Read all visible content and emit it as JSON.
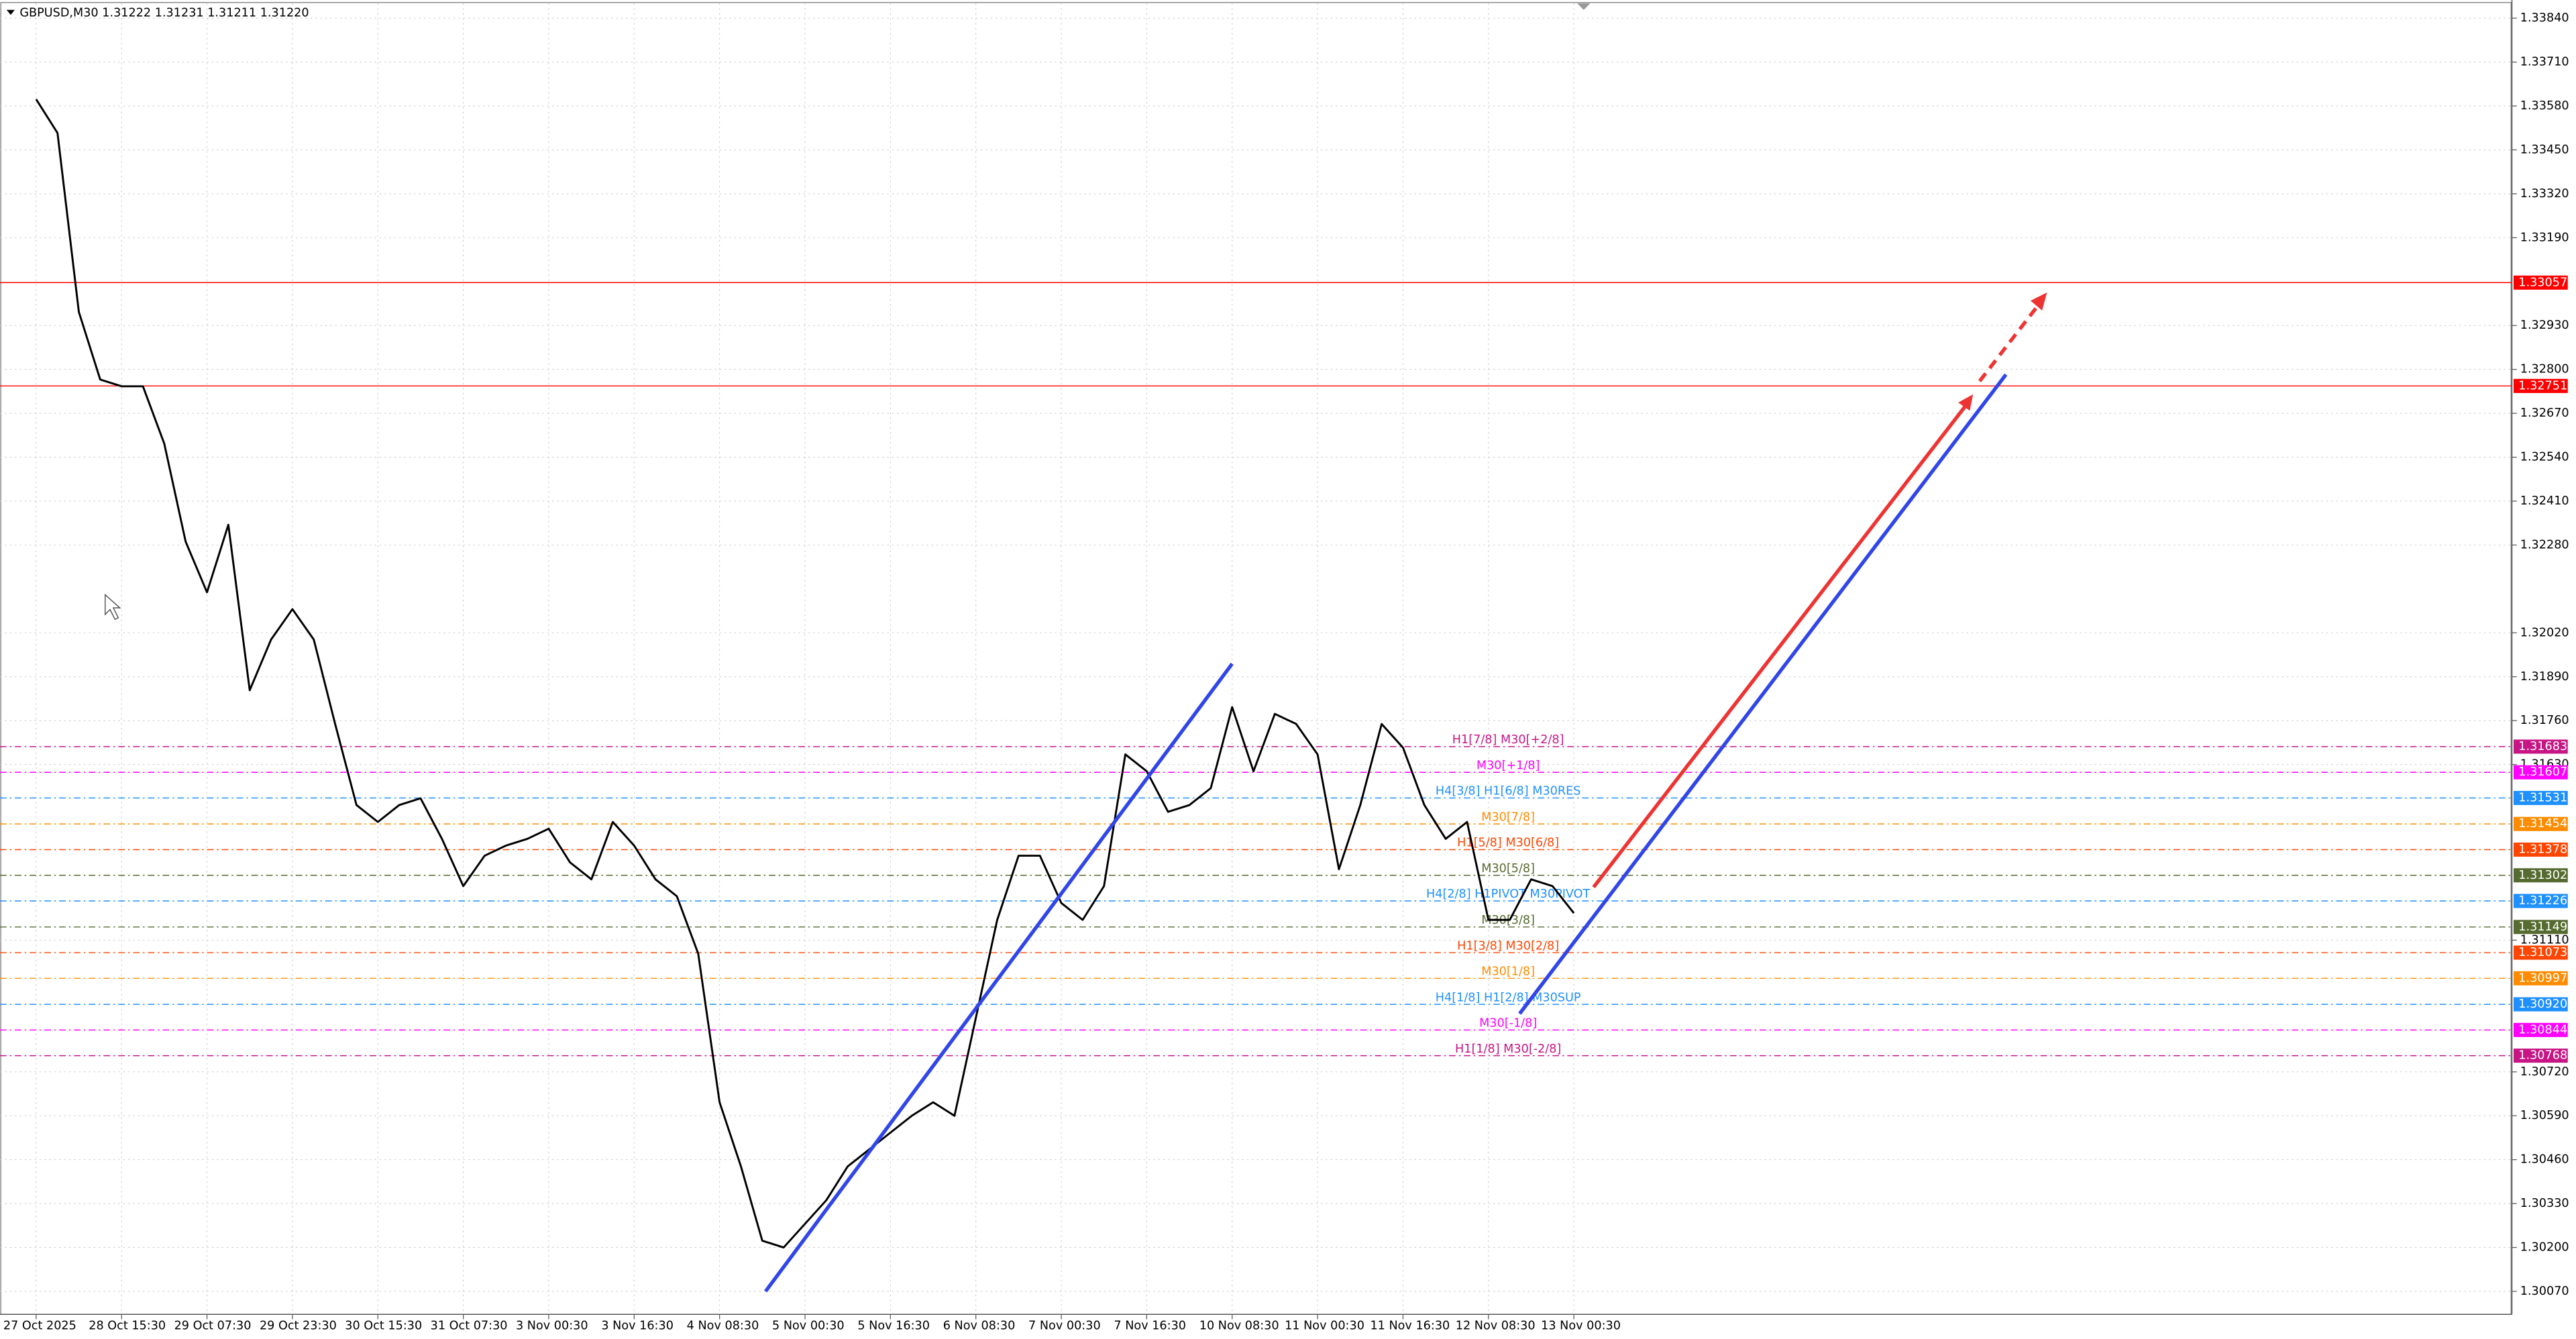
{
  "chart_data": {
    "type": "line",
    "title": "GBPUSD,M30  1.31222 1.31231 1.31211 1.31220",
    "categories": [
      "27 Oct 2025",
      null,
      null,
      null,
      "28 Oct 15:30",
      null,
      null,
      null,
      "29 Oct 07:30",
      null,
      null,
      null,
      "29 Oct 23:30",
      null,
      null,
      null,
      "30 Oct 15:30",
      null,
      null,
      null,
      "31 Oct 07:30",
      null,
      null,
      null,
      "3 Nov 00:30",
      null,
      null,
      null,
      "3 Nov 16:30",
      null,
      null,
      null,
      "4 Nov 08:30",
      null,
      null,
      null,
      "5 Nov 00:30",
      null,
      null,
      null,
      "5 Nov 16:30",
      null,
      null,
      null,
      "6 Nov 08:30",
      null,
      null,
      null,
      "7 Nov 00:30",
      null,
      null,
      null,
      "7 Nov 16:30",
      null,
      null,
      null,
      "10 Nov 08:30",
      null,
      null,
      null,
      "11 Nov 00:30",
      null,
      null,
      null,
      "11 Nov 16:30",
      null,
      null,
      null,
      "12 Nov 08:30",
      null,
      null,
      null,
      "13 Nov 00:30"
    ],
    "series": [
      {
        "color": "#000000",
        "values": [
          1.336,
          1.335,
          1.3297,
          1.3277,
          1.3275,
          1.3275,
          1.3258,
          1.3229,
          1.3214,
          1.3234,
          1.3185,
          1.32,
          1.3209,
          1.32,
          1.3175,
          1.3151,
          1.3146,
          1.3151,
          1.3153,
          1.3141,
          1.3127,
          1.3136,
          1.3139,
          1.3141,
          1.3144,
          1.3134,
          1.3129,
          1.3146,
          1.3139,
          1.3129,
          1.3124,
          1.3107,
          1.3063,
          1.3044,
          1.3022,
          1.302,
          1.3027,
          1.3034,
          1.3044,
          1.3049,
          1.3054,
          1.3059,
          1.3063,
          1.3059,
          1.3088,
          1.3117,
          1.3136,
          1.3136,
          1.3122,
          1.3117,
          1.3127,
          1.3166,
          1.3161,
          1.3149,
          1.3151,
          1.3156,
          1.318,
          1.3161,
          1.3178,
          1.3175,
          1.3166,
          1.3132,
          1.3151,
          1.3175,
          1.3168,
          1.3151,
          1.3141,
          1.3146,
          1.3117,
          1.3117,
          1.3129,
          1.3127,
          1.3119
        ]
      }
    ],
    "ylim": [
      1.30002,
      1.33884
    ],
    "yticks": [
      {
        "value": 1.3384,
        "label": "1.33840"
      },
      {
        "value": 1.3371,
        "label": "1.33710"
      },
      {
        "value": 1.3358,
        "label": "1.33580"
      },
      {
        "value": 1.3345,
        "label": "1.33450"
      },
      {
        "value": 1.3332,
        "label": "1.33320"
      },
      {
        "value": 1.3319,
        "label": "1.33190"
      },
      {
        "value": 1.3293,
        "label": "1.32930"
      },
      {
        "value": 1.328,
        "label": "1.32800"
      },
      {
        "value": 1.3267,
        "label": "1.32670"
      },
      {
        "value": 1.3254,
        "label": "1.32540"
      },
      {
        "value": 1.3241,
        "label": "1.32410"
      },
      {
        "value": 1.3228,
        "label": "1.32280"
      },
      {
        "value": 1.3202,
        "label": "1.32020"
      },
      {
        "value": 1.3189,
        "label": "1.31890"
      },
      {
        "value": 1.3176,
        "label": "1.31760"
      },
      {
        "value": 1.3163,
        "label": "1.31630"
      },
      {
        "value": 1.3111,
        "label": "1.31110"
      },
      {
        "value": 1.3072,
        "label": "1.30720"
      },
      {
        "value": 1.3059,
        "label": "1.30590"
      },
      {
        "value": 1.3046,
        "label": "1.30460"
      },
      {
        "value": 1.3033,
        "label": "1.30330"
      },
      {
        "value": 1.302,
        "label": "1.30200"
      },
      {
        "value": 1.3007,
        "label": "1.30070"
      }
    ],
    "grid": true,
    "levels": [
      {
        "value": 1.33057,
        "label": "1.33057",
        "color": "#ff0000"
      },
      {
        "value": 1.32751,
        "label": "1.32751",
        "color": "#ff0000"
      },
      {
        "value": 1.31683,
        "label": "1.31683",
        "name": "H1[7/8] M30[+2/8]",
        "color": "#c71585"
      },
      {
        "value": 1.31607,
        "label": "1.31607",
        "name": "M30[+1/8]",
        "color": "#ff00ff"
      },
      {
        "value": 1.31531,
        "label": "1.31531",
        "name": "H4[3/8] H1[6/8] M30RES",
        "color": "#1e90ff"
      },
      {
        "value": 1.31454,
        "label": "1.31454",
        "name": "M30[7/8]",
        "color": "#ff8c00"
      },
      {
        "value": 1.31378,
        "label": "1.31378",
        "name": "H1[5/8] M30[6/8]",
        "color": "#ff4500"
      },
      {
        "value": 1.31302,
        "label": "1.31302",
        "name": "M30[5/8]",
        "color": "#556b2f"
      },
      {
        "value": 1.31226,
        "label": "1.31226",
        "name": "H4[2/8] H1PIVOT M30PIVOT",
        "color": "#1e90ff"
      },
      {
        "value": 1.31149,
        "label": "1.31149",
        "name": "M30[3/8]",
        "color": "#556b2f"
      },
      {
        "value": 1.31073,
        "label": "1.31073",
        "name": "H1[3/8] M30[2/8]",
        "color": "#ff4500"
      },
      {
        "value": 1.30997,
        "label": "1.30997",
        "name": "M30[1/8]",
        "color": "#ff8c00"
      },
      {
        "value": 1.3092,
        "label": "1.30920",
        "name": "H4[1/8] H1[2/8] M30SUP",
        "color": "#1e90ff"
      },
      {
        "value": 1.30844,
        "label": "1.30844",
        "name": "M30[-1/8]",
        "color": "#ff00ff"
      },
      {
        "value": 1.30768,
        "label": "1.30768",
        "name": "H1[1/8] M30[-2/8]",
        "color": "#c71585"
      }
    ]
  }
}
